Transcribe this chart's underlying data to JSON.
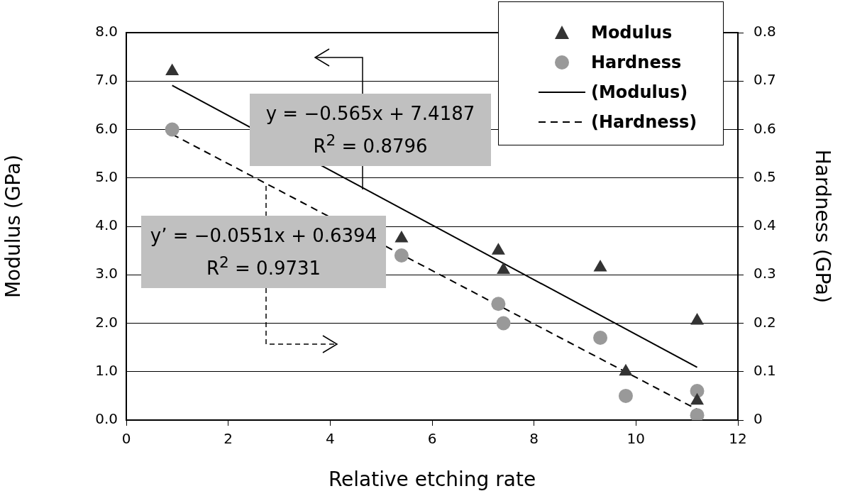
{
  "chart_data": {
    "type": "scatter",
    "xlabel": "Relative etching rate",
    "ylabel": "Modulus (GPa)",
    "y2label": "Hardness (GPa)",
    "xlim": [
      0,
      12
    ],
    "xticks": [
      0,
      2,
      4,
      6,
      8,
      10,
      12
    ],
    "ylim": [
      0,
      8
    ],
    "yticks": [
      {
        "value": 0,
        "label": "0.0"
      },
      {
        "value": 1,
        "label": "1.0"
      },
      {
        "value": 2,
        "label": "2.0"
      },
      {
        "value": 3,
        "label": "3.0"
      },
      {
        "value": 4,
        "label": "4.0"
      },
      {
        "value": 5,
        "label": "5.0"
      },
      {
        "value": 6,
        "label": "6.0"
      },
      {
        "value": 7,
        "label": "7.0"
      },
      {
        "value": 8,
        "label": "8.0"
      }
    ],
    "y2lim": [
      0,
      0.8
    ],
    "y2ticks": [
      0,
      0.1,
      0.2,
      0.3,
      0.4,
      0.5,
      0.6,
      0.7,
      0.8
    ],
    "grid": "y",
    "legend": "top right",
    "series": [
      {
        "name": "Modulus",
        "type": "scatter",
        "marker": "triangle",
        "color": "#333333",
        "x": [
          0.9,
          5.4,
          7.3,
          7.4,
          9.3,
          9.8,
          11.2,
          11.2
        ],
        "values": [
          7.2,
          3.75,
          3.5,
          3.1,
          3.15,
          1.0,
          2.05,
          0.4
        ]
      },
      {
        "name": "Hardness",
        "type": "scatter",
        "marker": "circle",
        "color": "#999999",
        "axis": "y2",
        "x": [
          0.9,
          5.4,
          7.3,
          7.4,
          9.3,
          9.8,
          11.2,
          11.2
        ],
        "values": [
          0.6,
          0.34,
          0.24,
          0.2,
          0.17,
          0.05,
          0.06,
          0.01
        ]
      },
      {
        "name": "(Modulus)",
        "type": "line",
        "marker": "none",
        "line_style": "solid",
        "color": "#000000",
        "x": [
          0.9,
          11.2
        ],
        "values": [
          6.91,
          1.09
        ]
      },
      {
        "name": "(Hardness)",
        "type": "line",
        "marker": "none",
        "line_style": "dashed",
        "color": "#000000",
        "axis": "y2",
        "x": [
          0.9,
          11.2
        ],
        "values": [
          0.59,
          0.022
        ]
      }
    ],
    "annotations": [
      "y = −0.565x + 7.4187",
      "R$^{2}$ = 0.8796",
      "y’ = −0.0551x + 0.6394",
      "R$^{2}$ = 0.9731"
    ]
  }
}
